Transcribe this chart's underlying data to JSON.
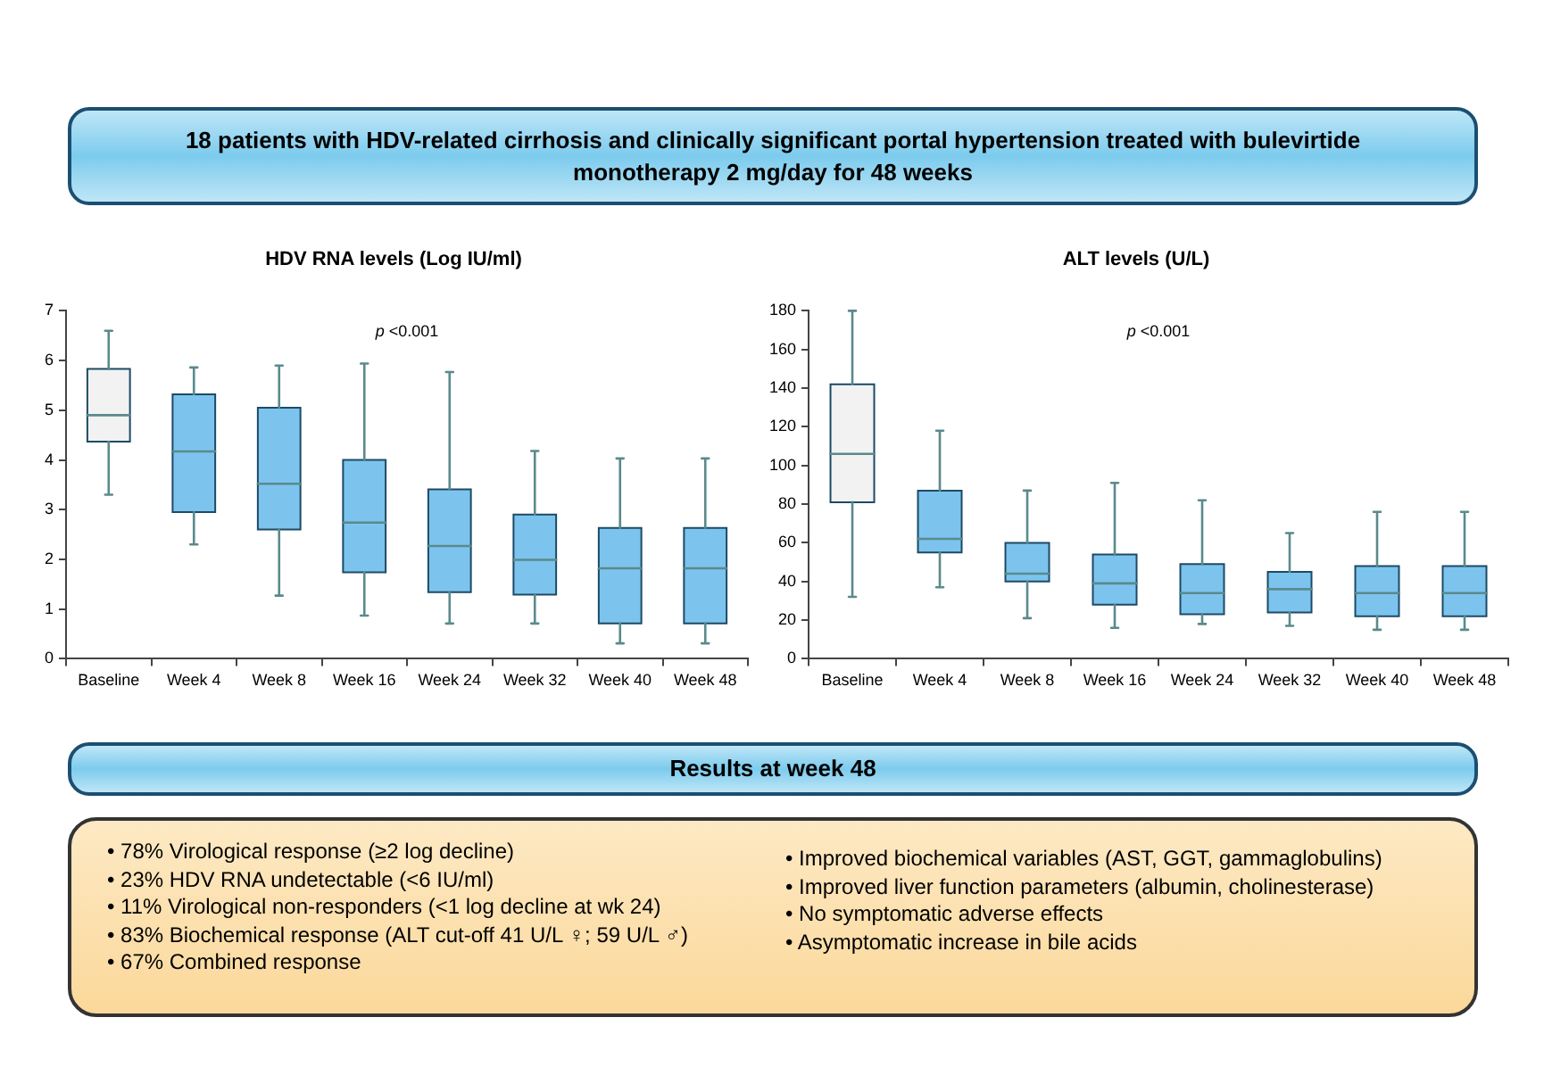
{
  "chart_data": [
    {
      "type": "other",
      "title": "18 patients with HDV-related cirrhosis and clinically significant portal hypertension treated with bulevirtide monotherapy 2 mg/day for 48 weeks"
    },
    {
      "type": "box",
      "title": "HDV RNA levels (Log IU/ml)",
      "categories": [
        "Baseline",
        "Week 4",
        "Week 8",
        "Week 16",
        "Week 24",
        "Week 32",
        "Week 40",
        "Week 48"
      ],
      "colors": [
        "#f2f2f2",
        "#7cc4ee",
        "#7cc4ee",
        "#7cc4ee",
        "#7cc4ee",
        "#7cc4ee",
        "#7cc4ee",
        "#7cc4ee"
      ],
      "ylim": [
        0,
        7
      ],
      "yticks": [
        0,
        1,
        2,
        3,
        4,
        5,
        6,
        7
      ],
      "annotations": [
        "p <0.001"
      ],
      "boxes": [
        {
          "low": 3.3,
          "q1": 4.37,
          "median": 4.9,
          "q3": 5.83,
          "high": 6.6
        },
        {
          "low": 2.3,
          "q1": 2.95,
          "median": 4.17,
          "q3": 5.32,
          "high": 5.86
        },
        {
          "low": 1.27,
          "q1": 2.6,
          "median": 3.52,
          "q3": 5.05,
          "high": 5.9
        },
        {
          "low": 0.87,
          "q1": 1.74,
          "median": 2.74,
          "q3": 4.0,
          "high": 5.94
        },
        {
          "low": 0.71,
          "q1": 1.34,
          "median": 2.27,
          "q3": 3.41,
          "high": 5.77
        },
        {
          "low": 0.71,
          "q1": 1.29,
          "median": 1.99,
          "q3": 2.9,
          "high": 4.18
        },
        {
          "low": 0.31,
          "q1": 0.71,
          "median": 1.82,
          "q3": 2.63,
          "high": 4.03
        },
        {
          "low": 0.31,
          "q1": 0.71,
          "median": 1.82,
          "q3": 2.63,
          "high": 4.03
        }
      ]
    },
    {
      "type": "box",
      "title": "ALT levels (U/L)",
      "categories": [
        "Baseline",
        "Week 4",
        "Week 8",
        "Week 16",
        "Week 24",
        "Week 32",
        "Week 40",
        "Week 48"
      ],
      "colors": [
        "#f2f2f2",
        "#7cc4ee",
        "#7cc4ee",
        "#7cc4ee",
        "#7cc4ee",
        "#7cc4ee",
        "#7cc4ee",
        "#7cc4ee"
      ],
      "ylim": [
        0,
        180
      ],
      "yticks": [
        0,
        20,
        40,
        60,
        80,
        100,
        120,
        140,
        160,
        180
      ],
      "annotations": [
        "p <0.001"
      ],
      "boxes": [
        {
          "low": 32,
          "q1": 81,
          "median": 106,
          "q3": 142,
          "high": 180
        },
        {
          "low": 37,
          "q1": 55,
          "median": 62,
          "q3": 87,
          "high": 118
        },
        {
          "low": 21,
          "q1": 40,
          "median": 44,
          "q3": 60,
          "high": 87
        },
        {
          "low": 16,
          "q1": 28,
          "median": 39,
          "q3": 54,
          "high": 91
        },
        {
          "low": 18,
          "q1": 23,
          "median": 34,
          "q3": 49,
          "high": 82
        },
        {
          "low": 17,
          "q1": 24,
          "median": 36,
          "q3": 45,
          "high": 65
        },
        {
          "low": 15,
          "q1": 22,
          "median": 34,
          "q3": 48,
          "high": 76
        },
        {
          "low": 15,
          "q1": 22,
          "median": 34,
          "q3": 48,
          "high": 76
        }
      ]
    },
    {
      "type": "other",
      "title": "Results at week 48",
      "annotations": [
        "• 78% Virological response (≥2 log decline)",
        "• 23% HDV RNA undetectable (<6 IU/ml)",
        "• 11% Virological non-responders (<1 log decline at wk 24)",
        "• 83% Biochemical response (ALT cut-off 41 U/L ♀; 59 U/L ♂)",
        "• 67% Combined response"
      ]
    },
    {
      "type": "other",
      "annotations": [
        "• Improved biochemical variables (AST, GGT, gammaglobulins)",
        "• Improved liver function parameters (albumin, cholinesterase)",
        "• No symptomatic adverse effects",
        "• Asymptomatic increase in bile acids"
      ]
    }
  ]
}
